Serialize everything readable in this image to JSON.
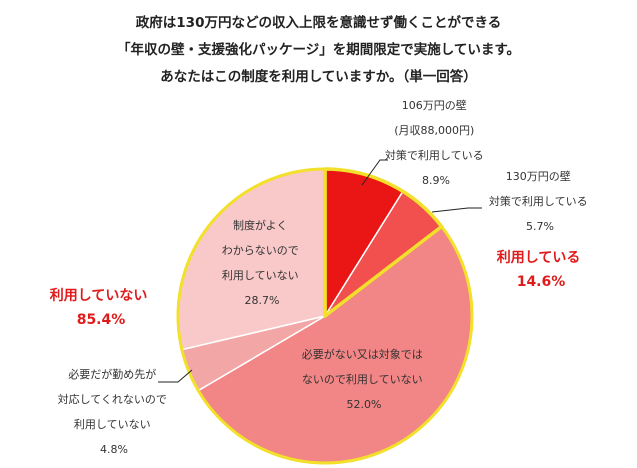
{
  "title_lines": [
    "政府は130万円などの収入上限を意識せず働くことができる",
    "「年収の壁・支援強化パッケージ」を期間限定で実施しています。",
    "あなたはこの制度を利用していますか。（単一回答）"
  ],
  "colors": {
    "border": "#f2e02a",
    "slices": [
      "#ea1515",
      "#f2504f",
      "#f28585",
      "#f3a6a6",
      "#f9c9c9"
    ],
    "group_text": "#e01b1b"
  },
  "chart_data": {
    "type": "pie",
    "slices": [
      {
        "label_lines": [
          "106万円の壁",
          "(月収88,000円)",
          "対策で利用している"
        ],
        "value": 8.9,
        "value_text": "8.9%"
      },
      {
        "label_lines": [
          "130万円の壁",
          "対策で利用している"
        ],
        "value": 5.7,
        "value_text": "5.7%"
      },
      {
        "label_lines": [
          "必要がない又は対象では",
          "ないので利用していない"
        ],
        "value": 52.0,
        "value_text": "52.0%"
      },
      {
        "label_lines": [
          "必要だが勤め先が",
          "対応してくれないので",
          "利用していない"
        ],
        "value": 4.8,
        "value_text": "4.8%"
      },
      {
        "label_lines": [
          "制度がよく",
          "わからないので",
          "利用していない"
        ],
        "value": 28.7,
        "value_text": "28.7%"
      }
    ],
    "groups": [
      {
        "label": "利用している",
        "value_text": "14.6%"
      },
      {
        "label": "利用していない",
        "value_text": "85.4%"
      }
    ]
  }
}
